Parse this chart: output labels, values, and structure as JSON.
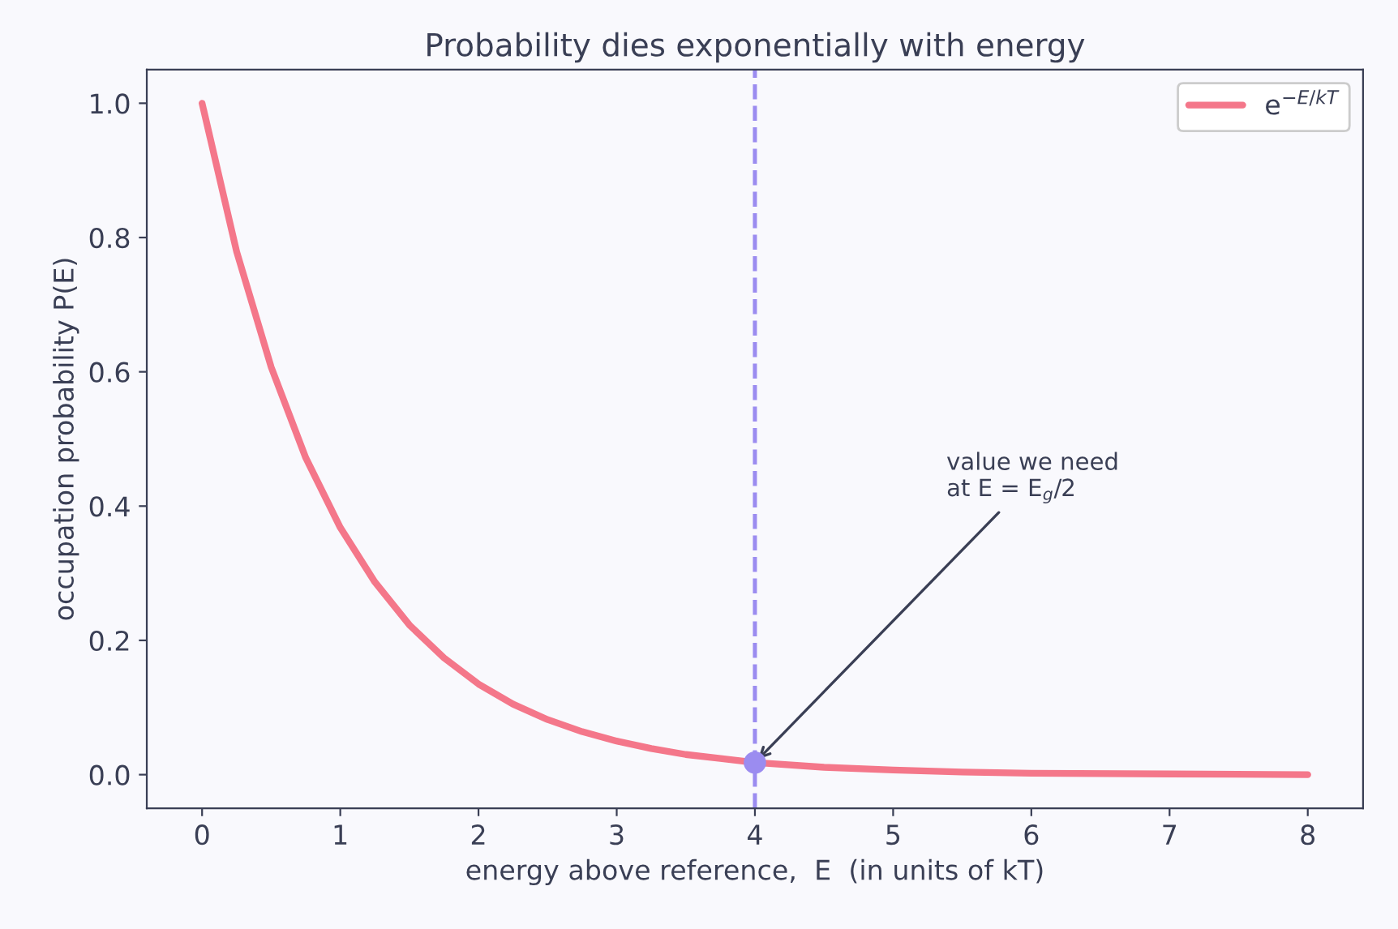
{
  "chart_data": {
    "type": "line",
    "title": "Probability dies exponentially with energy",
    "xlabel": "energy above reference,  E  (in units of kT)",
    "ylabel": "occupation probability P(E)",
    "series": [
      {
        "name": "e$^{−E/kT}$",
        "color": "#f4778a",
        "x": [
          0,
          0.25,
          0.5,
          0.75,
          1,
          1.25,
          1.5,
          1.75,
          2,
          2.25,
          2.5,
          2.75,
          3,
          3.25,
          3.5,
          3.75,
          4,
          4.5,
          5,
          5.5,
          6,
          7,
          8
        ],
        "values": [
          1.0,
          0.779,
          0.607,
          0.472,
          0.368,
          0.287,
          0.223,
          0.174,
          0.135,
          0.105,
          0.082,
          0.064,
          0.05,
          0.039,
          0.03,
          0.024,
          0.018,
          0.011,
          0.007,
          0.004,
          0.002,
          0.001,
          0.0
        ]
      },
      {
        "type": "scatter",
        "color": "#9b8cf0",
        "x": [
          4
        ],
        "values": [
          0.018
        ],
        "marker": "circle"
      }
    ],
    "ref_lines": [
      {
        "axis": "x",
        "value": 4,
        "color": "#9b8cf0",
        "line_style": "dashed"
      }
    ],
    "annotations": [
      {
        "text": "value we need\nat E = E$_{g}$/2",
        "x": 4,
        "y": 0.018
      }
    ],
    "xlim": [
      -0.4,
      8.4
    ],
    "ylim": [
      -0.05,
      1.05
    ],
    "xticks": [
      0,
      1,
      2,
      3,
      4,
      5,
      6,
      7,
      8
    ],
    "yticks": [
      {
        "value": 0,
        "label": "0.0"
      },
      {
        "value": 0.2,
        "label": "0.2"
      },
      {
        "value": 0.4,
        "label": "0.4"
      },
      {
        "value": 0.6,
        "label": "0.6"
      },
      {
        "value": 0.8,
        "label": "0.8"
      },
      {
        "value": 1,
        "label": "1.0"
      }
    ],
    "grid": false,
    "legend": "top right"
  }
}
